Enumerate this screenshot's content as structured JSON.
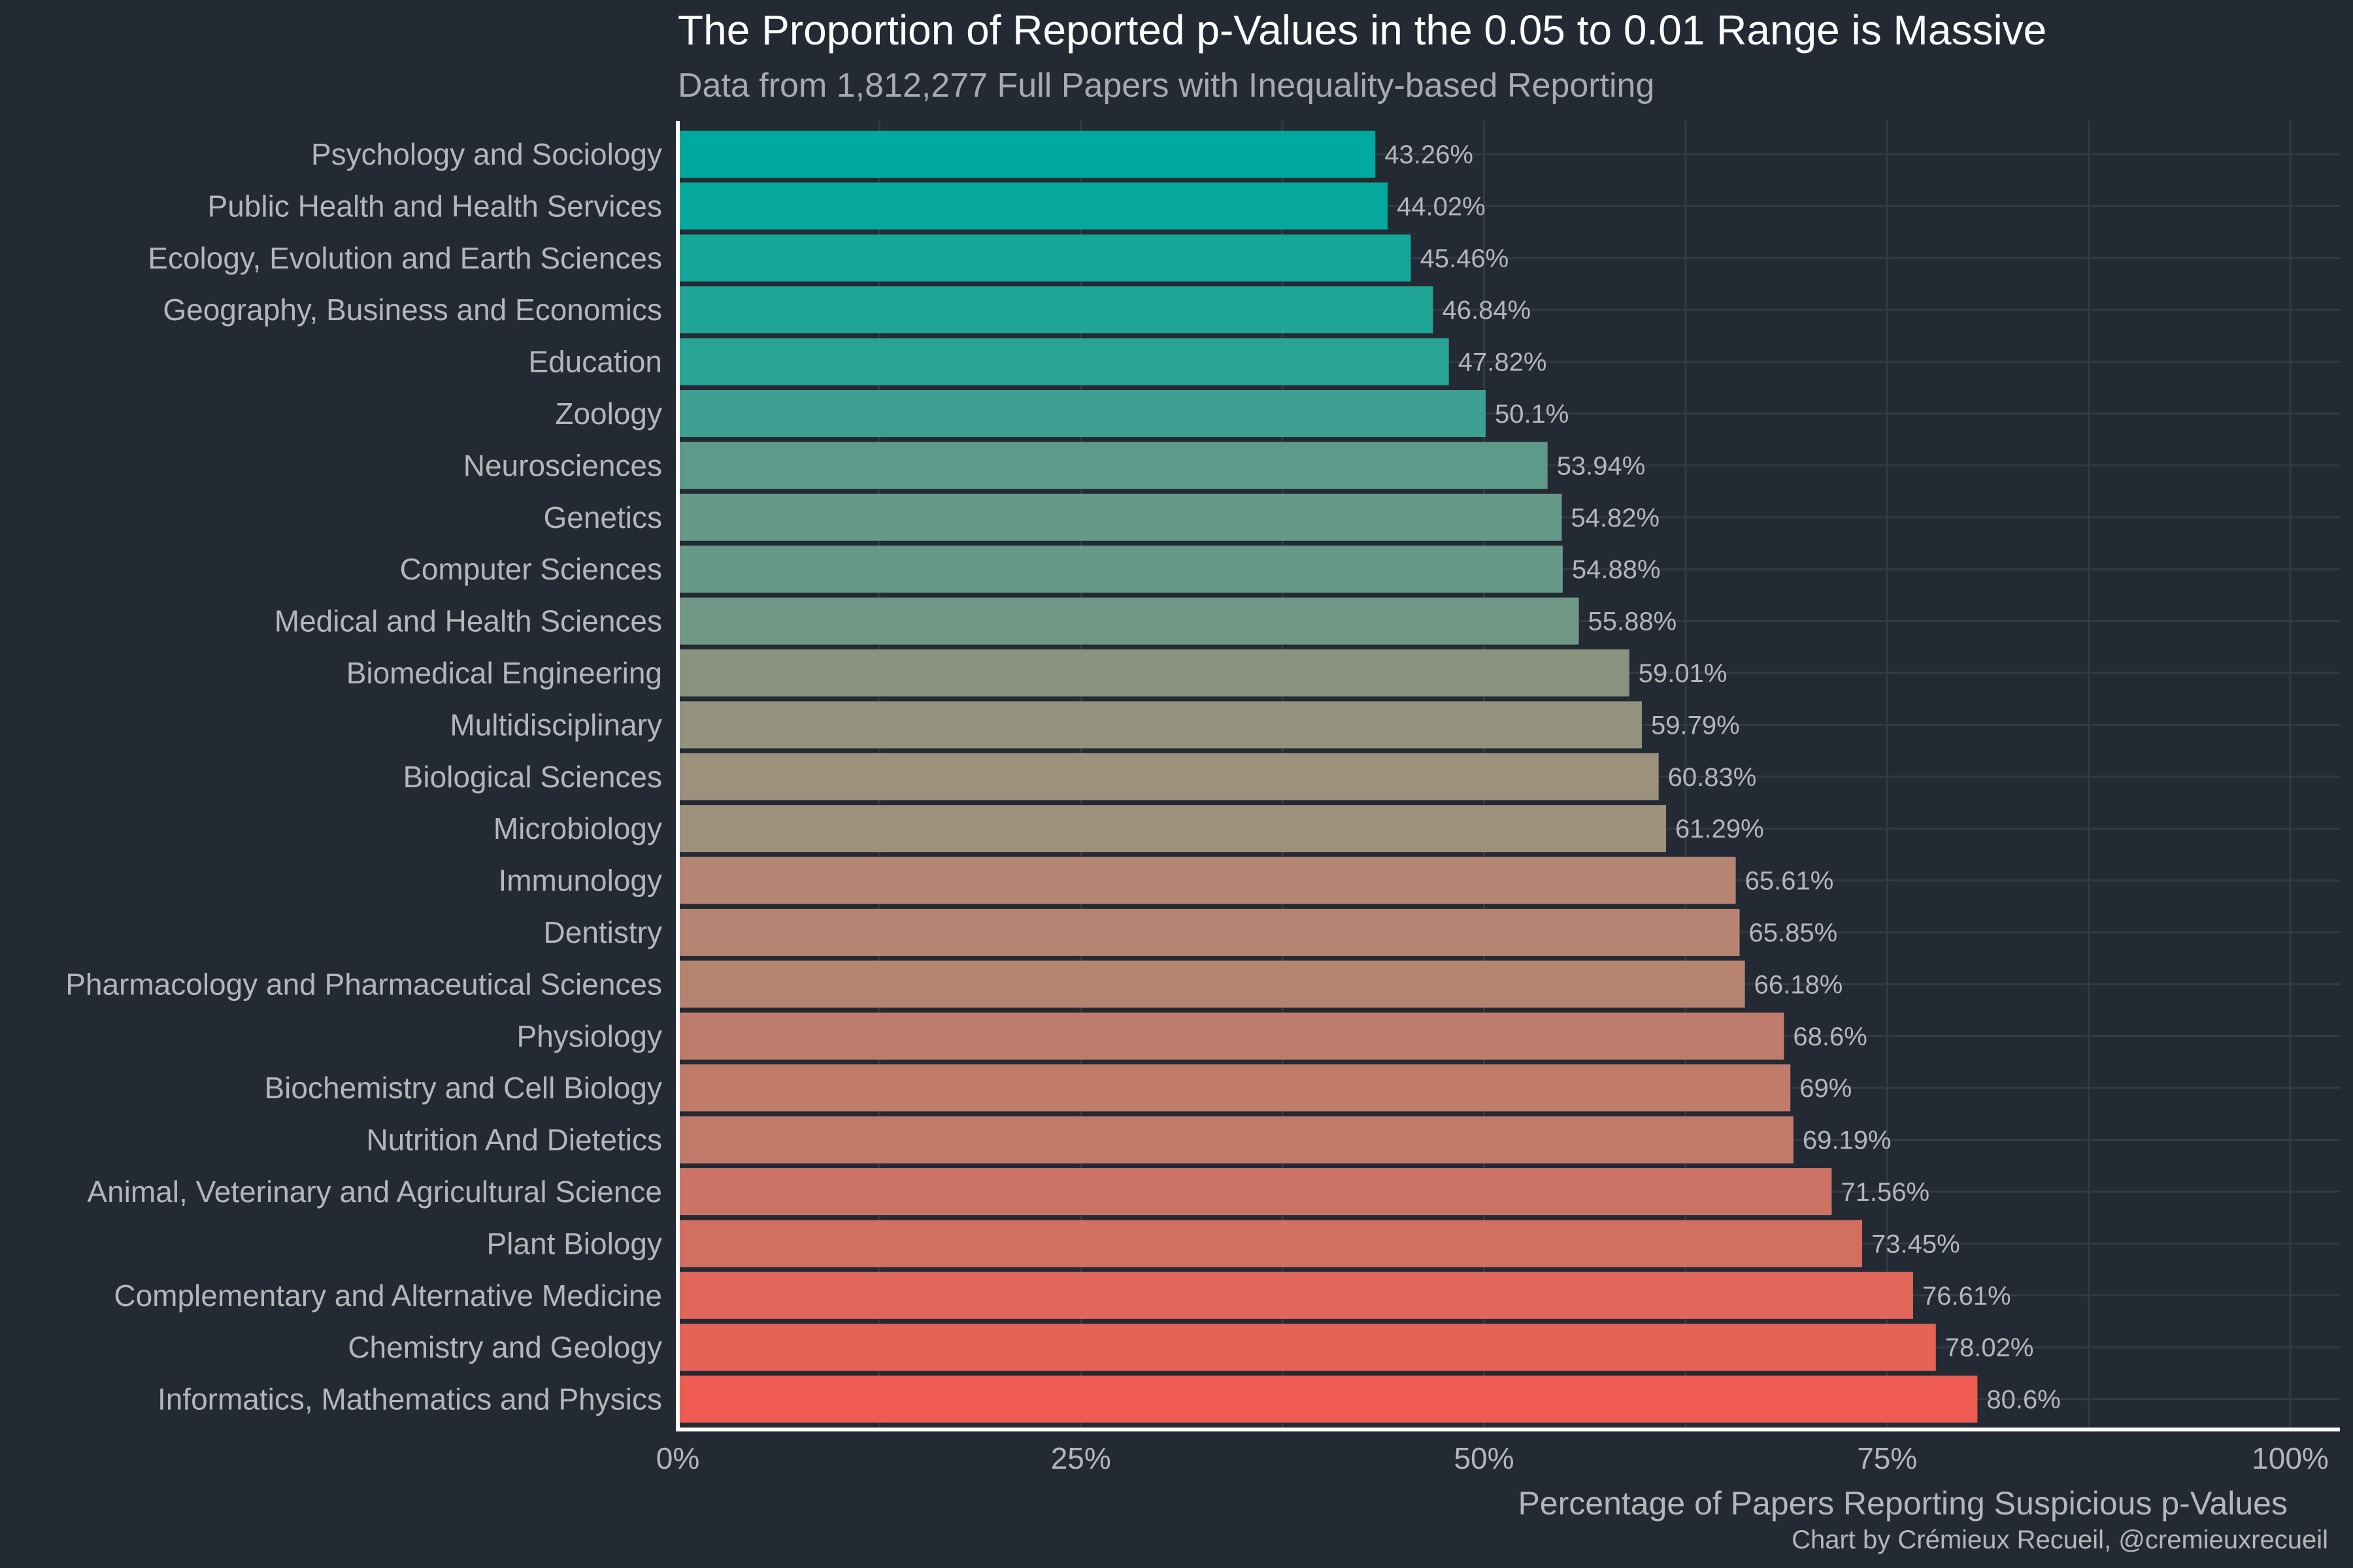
{
  "colors": {
    "background": "#232a33",
    "grid": "#323a44",
    "axis": "#ffffff",
    "gradient_start": "#00a99d",
    "gradient_mid": "#a58f7b",
    "gradient_end": "#ef5b50"
  },
  "chart_data": {
    "type": "bar",
    "orientation": "horizontal",
    "title": "The Proportion of Reported p-Values in the 0.05 to 0.01 Range is Massive",
    "subtitle": "Data from 1,812,277 Full Papers with Inequality-based Reporting",
    "xlabel": "Percentage of Papers Reporting Suspicious p-Values",
    "caption": "Chart by Crémieux Recueil, @cremieuxrecueil",
    "xlim": [
      0,
      100
    ],
    "xticks": [
      0,
      25,
      50,
      75,
      100
    ],
    "xtick_labels": [
      "0%",
      "25%",
      "50%",
      "75%",
      "100%"
    ],
    "grid": true,
    "categories": [
      "Psychology and Sociology",
      "Public Health and Health Services",
      "Ecology, Evolution and Earth Sciences",
      "Geography, Business and Economics",
      "Education",
      "Zoology",
      "Neurosciences",
      "Genetics",
      "Computer Sciences",
      "Medical and Health Sciences",
      "Biomedical Engineering",
      "Multidisciplinary",
      "Biological Sciences",
      "Microbiology",
      "Immunology",
      "Dentistry",
      "Pharmacology and Pharmaceutical Sciences",
      "Physiology",
      "Biochemistry and Cell Biology",
      "Nutrition And Dietetics",
      "Animal, Veterinary and Agricultural Science",
      "Plant Biology",
      "Complementary and Alternative Medicine",
      "Chemistry and Geology",
      "Informatics, Mathematics and Physics"
    ],
    "values": [
      43.26,
      44.02,
      45.46,
      46.84,
      47.82,
      50.1,
      53.94,
      54.82,
      54.88,
      55.88,
      59.01,
      59.79,
      60.83,
      61.29,
      65.61,
      65.85,
      66.18,
      68.6,
      69,
      69.19,
      71.56,
      73.45,
      76.61,
      78.02,
      80.6
    ],
    "value_labels": [
      "43.26%",
      "44.02%",
      "45.46%",
      "46.84%",
      "47.82%",
      "50.1%",
      "53.94%",
      "54.82%",
      "54.88%",
      "55.88%",
      "59.01%",
      "59.79%",
      "60.83%",
      "61.29%",
      "65.61%",
      "65.85%",
      "66.18%",
      "68.6%",
      "69%",
      "69.19%",
      "71.56%",
      "73.45%",
      "76.61%",
      "78.02%",
      "80.6%"
    ]
  }
}
